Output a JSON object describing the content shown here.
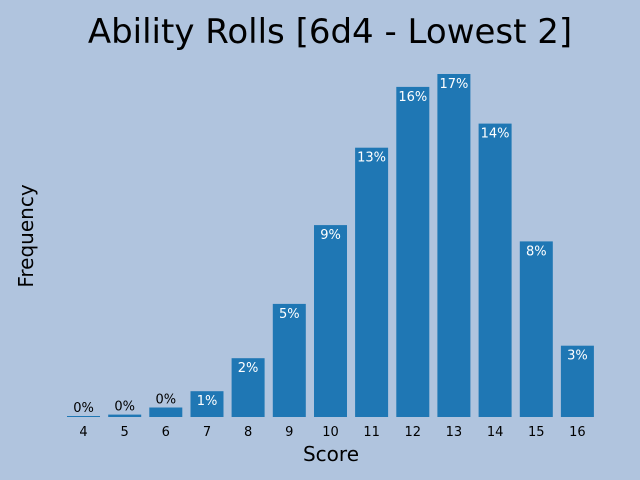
{
  "chart_data": {
    "type": "bar",
    "title": "Ability Rolls [6d4 - Lowest 2]",
    "xlabel": "Score",
    "ylabel": "Frequency",
    "categories": [
      "4",
      "5",
      "6",
      "7",
      "8",
      "9",
      "10",
      "11",
      "12",
      "13",
      "14",
      "15",
      "16"
    ],
    "values": [
      0.07,
      0.7,
      2.8,
      7.6,
      17.3,
      33.3,
      56.5,
      79.3,
      97.2,
      101,
      86.4,
      51.7,
      21
    ],
    "value_labels": [
      "0%",
      "0%",
      "0%",
      "1%",
      "2%",
      "5%",
      "9%",
      "13%",
      "16%",
      "17%",
      "14%",
      "8%",
      "3%"
    ],
    "ylim": [
      0,
      106
    ],
    "bar_color": "#1f77b4",
    "background_color": "#b0c4de",
    "grid": false,
    "legend": "none"
  }
}
